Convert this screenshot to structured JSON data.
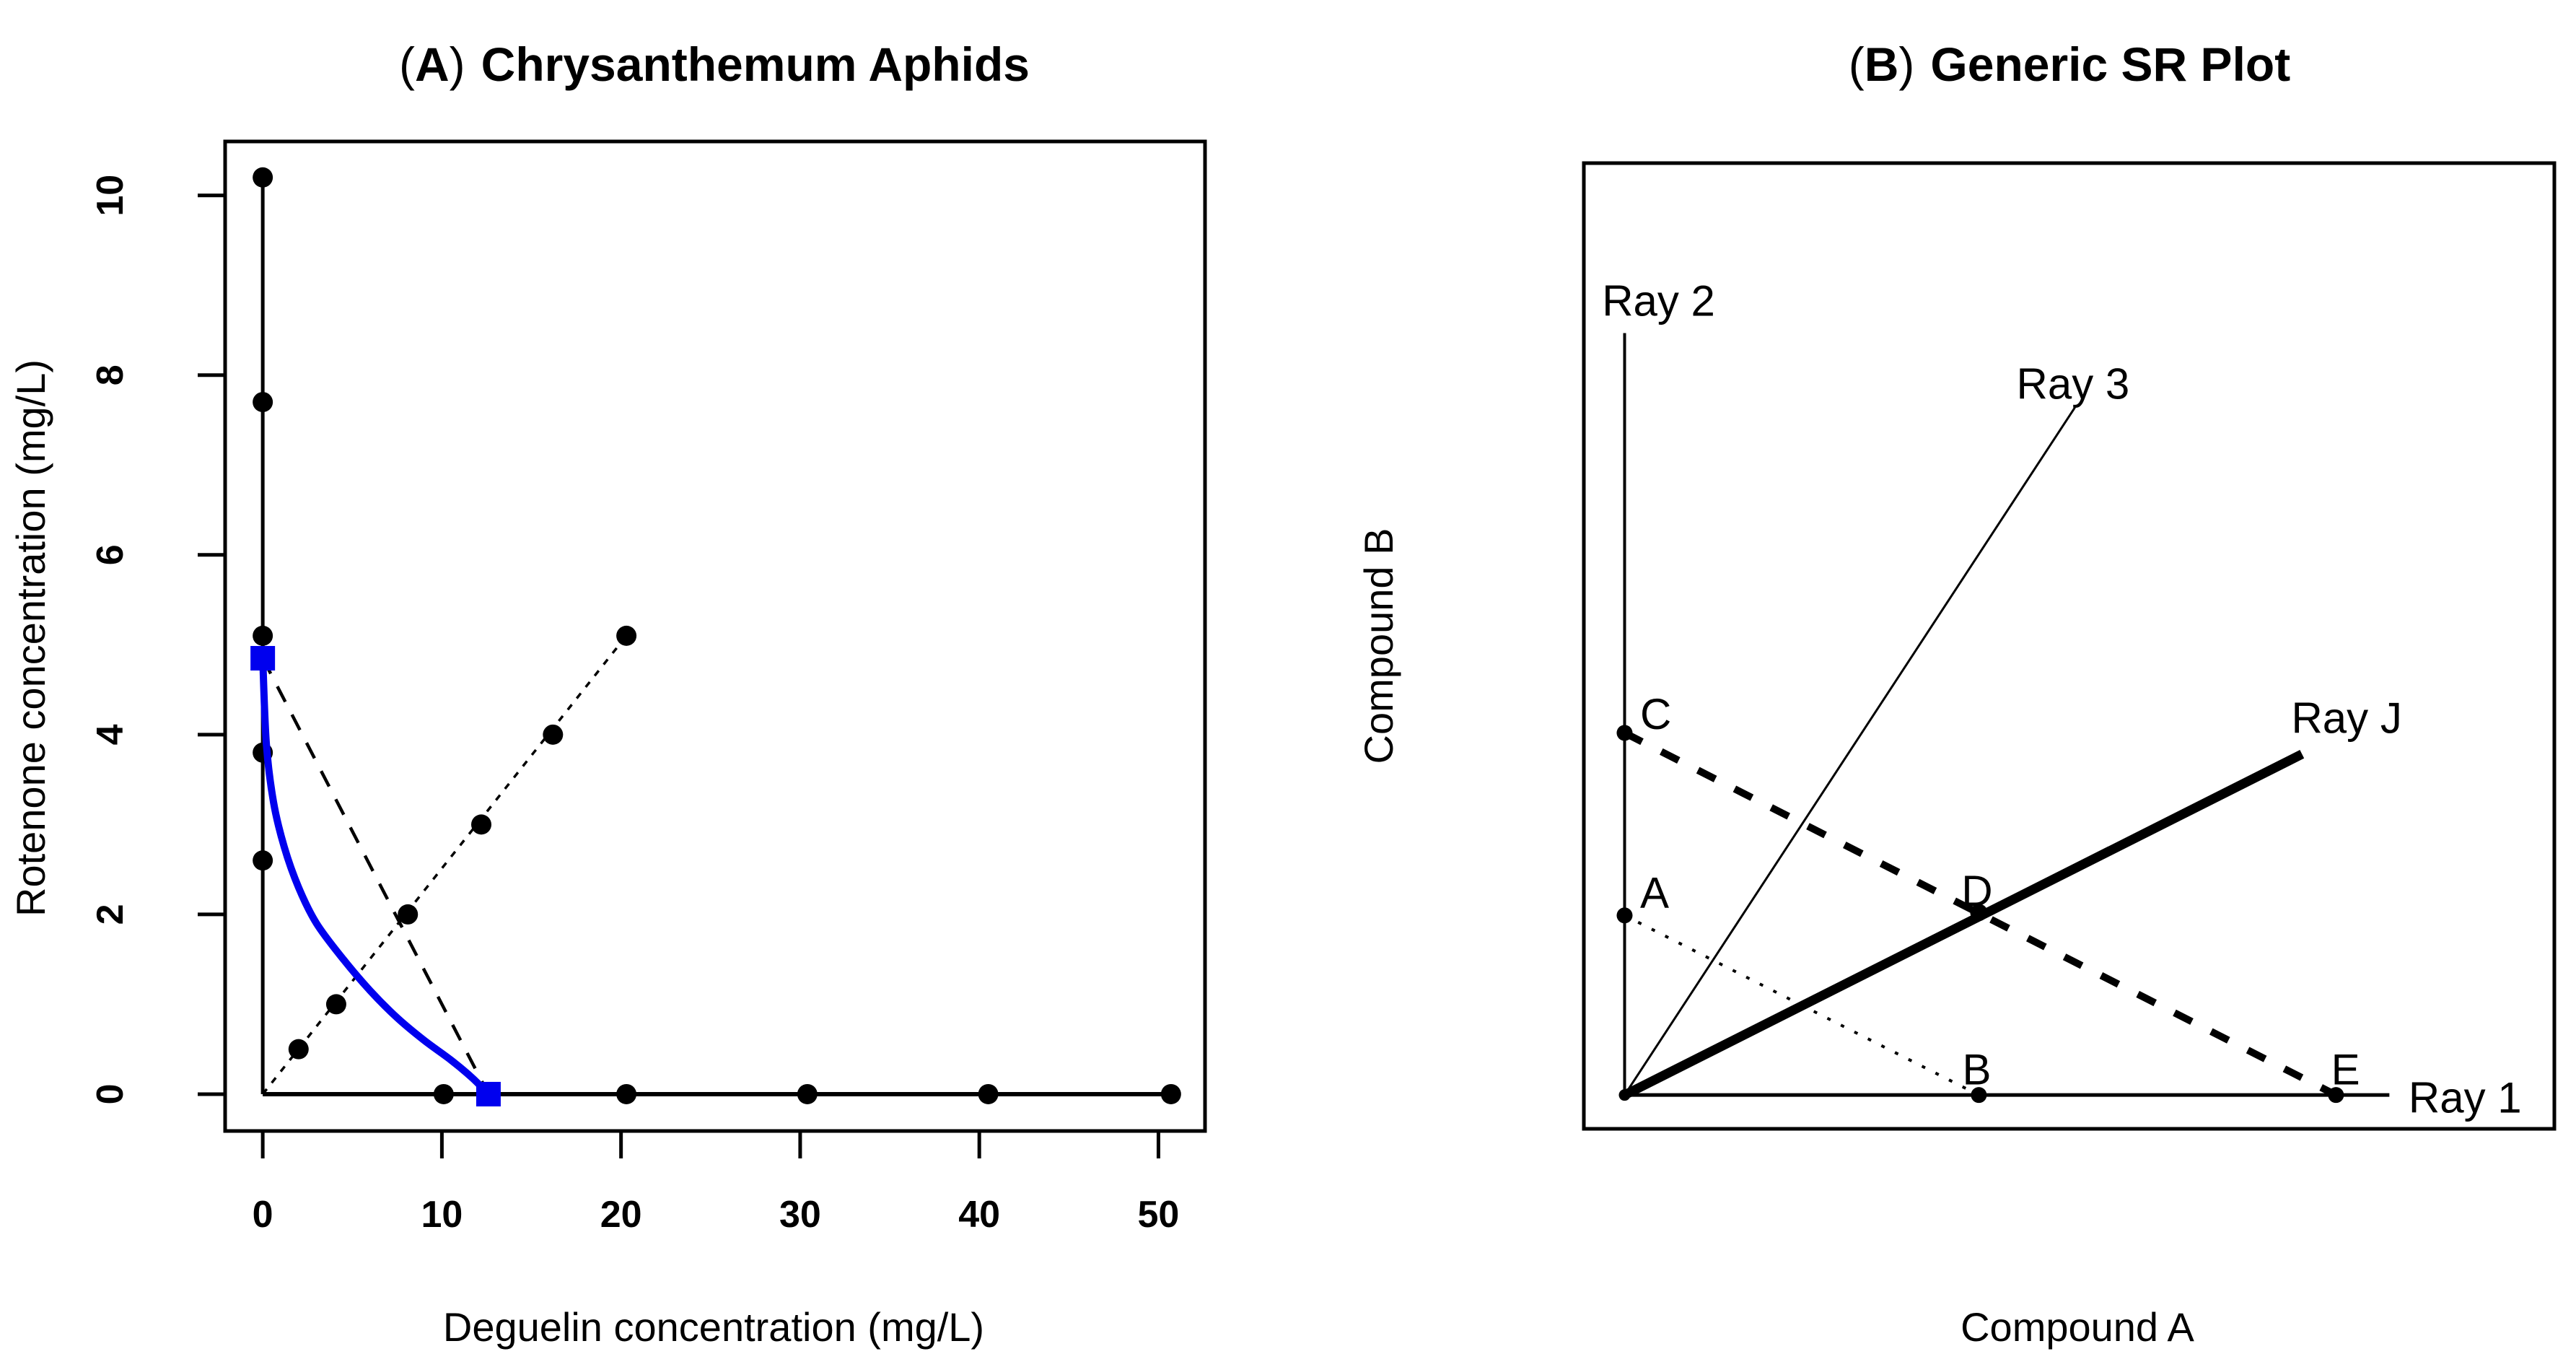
{
  "figure": {
    "background": "#ffffff",
    "line_color": "#000000",
    "accent_color": "#0000EE"
  },
  "chart_data": [
    {
      "id": "A",
      "type": "scatter",
      "title_open": "(",
      "title_letter": "A",
      "title_close": ")",
      "title_text": "Chrysanthemum Aphids",
      "xlabel": "Deguelin concentration (mg/L)",
      "ylabel": "Rotenone concentration (mg/L)",
      "xticks": [
        "0",
        "10",
        "20",
        "30",
        "40",
        "50"
      ],
      "xtick_values": [
        0,
        10,
        20,
        30,
        40,
        50
      ],
      "yticks": [
        "0",
        "2",
        "4",
        "6",
        "8",
        "10"
      ],
      "ytick_values": [
        0,
        2,
        4,
        6,
        8,
        10
      ],
      "xlim": [
        -2.1,
        52.6
      ],
      "ylim": [
        -0.41,
        10.6
      ],
      "grid": false,
      "legend": "none",
      "series": [
        {
          "name": "rotenone-alone-ray",
          "marker": "circle",
          "marker_size": 14,
          "color": "#000000",
          "line_style": "solid",
          "line_width": 5,
          "line": [
            [
              0,
              0
            ],
            [
              0,
              10.2
            ]
          ],
          "points": [
            [
              0,
              2.6
            ],
            [
              0,
              3.8
            ],
            [
              0,
              5.1
            ],
            [
              0,
              7.7
            ],
            [
              0,
              10.2
            ]
          ]
        },
        {
          "name": "deguelin-alone-ray",
          "marker": "circle",
          "marker_size": 14,
          "color": "#000000",
          "line_style": "solid",
          "line_width": 6,
          "line": [
            [
              0,
              0
            ],
            [
              50.7,
              0
            ]
          ],
          "points": [
            [
              10.1,
              0
            ],
            [
              20.3,
              0
            ],
            [
              30.4,
              0
            ],
            [
              40.5,
              0
            ],
            [
              50.7,
              0
            ]
          ]
        },
        {
          "name": "mixture-ray-1-to-4",
          "marker": "circle",
          "marker_size": 14,
          "color": "#000000",
          "line_style": "dotted",
          "line_width": 3.5,
          "line": [
            [
              0,
              0
            ],
            [
              20.3,
              5.1
            ]
          ],
          "points": [
            [
              2,
              0.5
            ],
            [
              4.1,
              1
            ],
            [
              8.1,
              2
            ],
            [
              12.2,
              3
            ],
            [
              16.2,
              4
            ],
            [
              20.3,
              5.1
            ]
          ]
        },
        {
          "name": "additivity-isobole-dashed",
          "marker": "none",
          "marker_size": 0,
          "color": "#000000",
          "line_style": "dashed",
          "line_width": 4.5,
          "line": [
            [
              0,
              4.85
            ],
            [
              12.6,
              0
            ]
          ],
          "points": []
        },
        {
          "name": "synergy-isobole-curve",
          "marker": "square",
          "marker_size": 17,
          "color": "#0000EE",
          "line_style": "solid",
          "line_width": 10,
          "smooth": true,
          "line": [
            [
              0,
              4.85
            ],
            [
              0.2,
              3.9
            ],
            [
              0.6,
              3.25
            ],
            [
              1.2,
              2.75
            ],
            [
              2,
              2.3
            ],
            [
              3,
              1.9
            ],
            [
              4.5,
              1.5
            ],
            [
              6,
              1.15
            ],
            [
              7.5,
              0.85
            ],
            [
              9,
              0.6
            ],
            [
              10.5,
              0.38
            ],
            [
              11.7,
              0.18
            ],
            [
              12.6,
              0
            ]
          ],
          "points": [
            [
              0,
              4.85
            ],
            [
              12.6,
              0
            ]
          ]
        }
      ]
    },
    {
      "id": "B",
      "type": "line",
      "title_open": "(",
      "title_letter": "B",
      "title_close": ")",
      "title_text": "Generic SR Plot",
      "xlabel": "Compound A",
      "ylabel": "Compound B",
      "xticks": [],
      "yticks": [],
      "grid": false,
      "legend": "none",
      "origin": [
        0.042,
        0.035
      ],
      "rays": [
        {
          "name": "ray-1",
          "label": "Ray 1",
          "to": [
            0.83,
            0.035
          ],
          "width": 5,
          "dash": "",
          "label_pos": [
            0.908,
            0.017
          ],
          "label_anchor": "middle"
        },
        {
          "name": "ray-2",
          "label": "Ray 2",
          "to": [
            0.042,
            0.824
          ],
          "width": 4,
          "dash": "",
          "label_pos": [
            0.077,
            0.842
          ],
          "label_anchor": "middle"
        },
        {
          "name": "ray-3",
          "label": "Ray 3",
          "to": [
            0.506,
            0.747
          ],
          "width": 3,
          "dash": "",
          "label_pos": [
            0.504,
            0.756
          ],
          "label_anchor": "middle"
        },
        {
          "name": "ray-j",
          "label": "Ray J",
          "to": [
            0.74,
            0.388
          ],
          "width": 13,
          "dash": "",
          "label_pos": [
            0.786,
            0.41
          ],
          "label_anchor": "middle"
        }
      ],
      "segments": [
        {
          "name": "isobole-C-to-E-heavy-dashed",
          "from": "C",
          "to": "E",
          "width": 10,
          "dash": "27 30"
        },
        {
          "name": "isobole-A-to-B-fine-dotted",
          "from": "A",
          "to": "B",
          "width": 4,
          "dash": "5 16"
        }
      ],
      "points": [
        {
          "label": "",
          "name": "origin-point",
          "pos": [
            0.042,
            0.035
          ],
          "r": 8,
          "label_pos": null
        },
        {
          "label": "A",
          "name": "point-A",
          "pos": [
            0.042,
            0.221
          ],
          "r": 11,
          "label_pos": [
            0.058,
            0.229
          ]
        },
        {
          "label": "B",
          "name": "point-B",
          "pos": [
            0.407,
            0.035
          ],
          "r": 11,
          "label_pos": [
            0.39,
            0.046
          ]
        },
        {
          "label": "C",
          "name": "point-C",
          "pos": [
            0.042,
            0.41
          ],
          "r": 11,
          "label_pos": [
            0.058,
            0.414
          ]
        },
        {
          "label": "D",
          "name": "point-D",
          "pos": [
            0.407,
            0.224
          ],
          "r": 12,
          "label_pos": [
            0.389,
            0.231
          ]
        },
        {
          "label": "E",
          "name": "point-E",
          "pos": [
            0.775,
            0.035
          ],
          "r": 11,
          "label_pos": [
            0.77,
            0.046
          ]
        }
      ]
    }
  ]
}
